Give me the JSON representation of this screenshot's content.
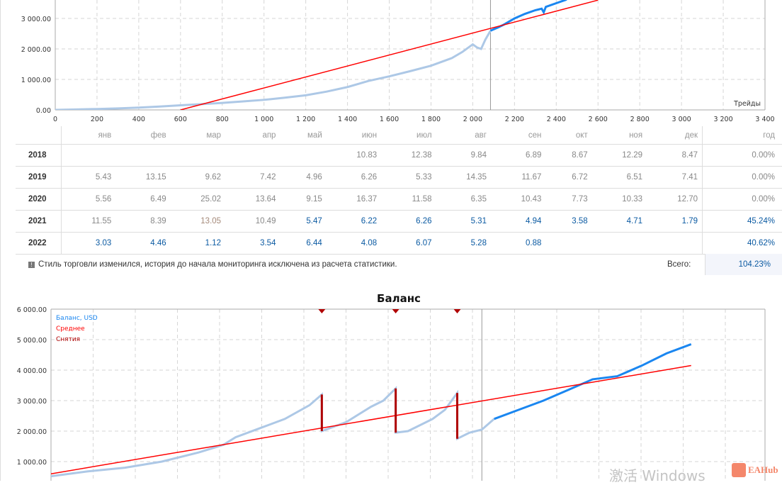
{
  "trades_chart": {
    "type": "line",
    "xlabel": "Трейды",
    "ylim": [
      0,
      3600
    ],
    "xlim": [
      0,
      3400
    ],
    "y_ticks": [
      "0.00",
      "1 000.00",
      "2 000.00",
      "3 000.00"
    ],
    "x_ticks": [
      "0",
      "200",
      "400",
      "600",
      "800",
      "1 000",
      "1 200",
      "1 400",
      "1 600",
      "1 800",
      "2 000",
      "2 200",
      "2 400",
      "2 600",
      "2 800",
      "3 000",
      "3 200",
      "3 400"
    ],
    "grid": true,
    "monitoring_start_trade": 2085,
    "colors": {
      "history": "#adc8e6",
      "monitored": "#1a86f0",
      "average": "#ff0000"
    },
    "balance_history": [
      [
        0,
        0
      ],
      [
        100,
        15
      ],
      [
        200,
        30
      ],
      [
        300,
        50
      ],
      [
        400,
        75
      ],
      [
        500,
        110
      ],
      [
        600,
        150
      ],
      [
        700,
        190
      ],
      [
        800,
        230
      ],
      [
        900,
        280
      ],
      [
        1000,
        330
      ],
      [
        1100,
        400
      ],
      [
        1200,
        480
      ],
      [
        1300,
        600
      ],
      [
        1400,
        750
      ],
      [
        1500,
        950
      ],
      [
        1600,
        1100
      ],
      [
        1700,
        1270
      ],
      [
        1800,
        1450
      ],
      [
        1900,
        1700
      ],
      [
        1950,
        1900
      ],
      [
        2000,
        2150
      ],
      [
        2020,
        2050
      ],
      [
        2040,
        2000
      ],
      [
        2060,
        2300
      ],
      [
        2085,
        2600
      ]
    ],
    "balance_monitored": [
      [
        2085,
        2600
      ],
      [
        2120,
        2700
      ],
      [
        2150,
        2800
      ],
      [
        2200,
        3000
      ],
      [
        2250,
        3150
      ],
      [
        2300,
        3270
      ],
      [
        2330,
        3320
      ],
      [
        2340,
        3200
      ],
      [
        2350,
        3380
      ],
      [
        2400,
        3500
      ],
      [
        2450,
        3620
      ]
    ],
    "average": [
      [
        600,
        0
      ],
      [
        2600,
        3600
      ]
    ]
  },
  "returns_table": {
    "headers": [
      "янв",
      "фев",
      "мар",
      "апр",
      "май",
      "июн",
      "июл",
      "авг",
      "сен",
      "окт",
      "ноя",
      "дек",
      "год"
    ],
    "rows": [
      {
        "year": "2018",
        "cells": [
          [
            "",
            ""
          ],
          [
            "",
            ""
          ],
          [
            "",
            ""
          ],
          [
            "",
            ""
          ],
          [
            "",
            ""
          ],
          [
            "10.83",
            "g"
          ],
          [
            "12.38",
            "g"
          ],
          [
            "9.84",
            "g"
          ],
          [
            "6.89",
            "g"
          ],
          [
            "8.67",
            "g"
          ],
          [
            "12.29",
            "g"
          ],
          [
            "8.47",
            "g"
          ]
        ],
        "total": [
          "0.00%",
          "g"
        ]
      },
      {
        "year": "2019",
        "cells": [
          [
            "5.43",
            "g"
          ],
          [
            "13.15",
            "g"
          ],
          [
            "9.62",
            "g"
          ],
          [
            "7.42",
            "g"
          ],
          [
            "4.96",
            "g"
          ],
          [
            "6.26",
            "g"
          ],
          [
            "5.33",
            "g"
          ],
          [
            "14.35",
            "g"
          ],
          [
            "11.67",
            "g"
          ],
          [
            "6.72",
            "g"
          ],
          [
            "6.51",
            "g"
          ],
          [
            "7.41",
            "g"
          ]
        ],
        "total": [
          "0.00%",
          "g"
        ]
      },
      {
        "year": "2020",
        "cells": [
          [
            "5.56",
            "g"
          ],
          [
            "6.49",
            "g"
          ],
          [
            "25.02",
            "g"
          ],
          [
            "13.64",
            "g"
          ],
          [
            "9.15",
            "g"
          ],
          [
            "16.37",
            "g"
          ],
          [
            "11.58",
            "g"
          ],
          [
            "6.35",
            "g"
          ],
          [
            "10.43",
            "g"
          ],
          [
            "7.73",
            "g"
          ],
          [
            "10.33",
            "g"
          ],
          [
            "12.70",
            "g"
          ]
        ],
        "total": [
          "0.00%",
          "g"
        ]
      },
      {
        "year": "2021",
        "cells": [
          [
            "11.55",
            "g"
          ],
          [
            "8.39",
            "g"
          ],
          [
            "13.05",
            "t"
          ],
          [
            "10.49",
            "g"
          ],
          [
            "5.47",
            "b"
          ],
          [
            "6.22",
            "b"
          ],
          [
            "6.26",
            "b"
          ],
          [
            "5.31",
            "b"
          ],
          [
            "4.94",
            "b"
          ],
          [
            "3.58",
            "b"
          ],
          [
            "4.71",
            "b"
          ],
          [
            "1.79",
            "b"
          ]
        ],
        "total": [
          "45.24%",
          "b"
        ]
      },
      {
        "year": "2022",
        "cells": [
          [
            "3.03",
            "b"
          ],
          [
            "4.46",
            "b"
          ],
          [
            "1.12",
            "b"
          ],
          [
            "3.54",
            "b"
          ],
          [
            "6.44",
            "b"
          ],
          [
            "4.08",
            "b"
          ],
          [
            "6.07",
            "b"
          ],
          [
            "5.28",
            "b"
          ],
          [
            "0.88",
            "b"
          ],
          [
            "",
            ""
          ],
          [
            "",
            ""
          ],
          [
            "",
            ""
          ]
        ],
        "total": [
          "40.62%",
          "b"
        ]
      }
    ],
    "note": "Стиль торговли изменился, история до начала мониторинга исключена из расчета статистики.",
    "total_label": "Всего:",
    "total_value": "104.23%"
  },
  "balance_chart": {
    "type": "line",
    "title": "Баланс",
    "ylim": [
      0,
      6000
    ],
    "y_ticks": [
      "1 000.00",
      "2 000.00",
      "3 000.00",
      "4 000.00",
      "5 000.00",
      "6 000.00"
    ],
    "grid": true,
    "legend": [
      "Баланс, USD",
      "Среднее",
      "Снятия"
    ],
    "legend_position": "top-left",
    "colors": {
      "history": "#adc8e6",
      "monitored": "#1a86f0",
      "average": "#ff0000",
      "withdrawal": "#b00000"
    },
    "xlim": [
      "2018-06",
      "2023-04"
    ],
    "monitoring_start": "2021-05",
    "balance_history": [
      [
        "2018-06",
        520
      ],
      [
        "2018-09",
        680
      ],
      [
        "2018-12",
        800
      ],
      [
        "2019-03",
        1000
      ],
      [
        "2019-06",
        1300
      ],
      [
        "2019-08",
        1550
      ],
      [
        "2019-09",
        1800
      ],
      [
        "2019-11",
        2100
      ],
      [
        "2020-01",
        2400
      ],
      [
        "2020-03",
        2850
      ],
      [
        "2020-04",
        3200
      ],
      [
        "2020-04",
        2000
      ],
      [
        "2020-06",
        2300
      ],
      [
        "2020-08",
        2800
      ],
      [
        "2020-09",
        3000
      ],
      [
        "2020-10",
        3400
      ],
      [
        "2020-10",
        1950
      ],
      [
        "2020-11",
        2000
      ],
      [
        "2021-01",
        2400
      ],
      [
        "2021-02",
        2700
      ],
      [
        "2021-03",
        3250
      ],
      [
        "2021-03",
        1750
      ],
      [
        "2021-04",
        1950
      ],
      [
        "2021-05",
        2050
      ],
      [
        "2021-06",
        2400
      ]
    ],
    "balance_monitored": [
      [
        "2021-06",
        2400
      ],
      [
        "2021-08",
        2700
      ],
      [
        "2021-10",
        3000
      ],
      [
        "2021-12",
        3350
      ],
      [
        "2022-02",
        3700
      ],
      [
        "2022-04",
        3800
      ],
      [
        "2022-06",
        4150
      ],
      [
        "2022-08",
        4550
      ],
      [
        "2022-10",
        4850
      ]
    ],
    "average": [
      [
        "2018-06",
        600
      ],
      [
        "2022-10",
        4150
      ]
    ],
    "withdrawals": [
      [
        "2020-04",
        3200,
        2000
      ],
      [
        "2020-10",
        3400,
        1950
      ],
      [
        "2021-03",
        3250,
        1750
      ]
    ]
  },
  "watermark": "激活 Windows",
  "brand": "EAHub"
}
